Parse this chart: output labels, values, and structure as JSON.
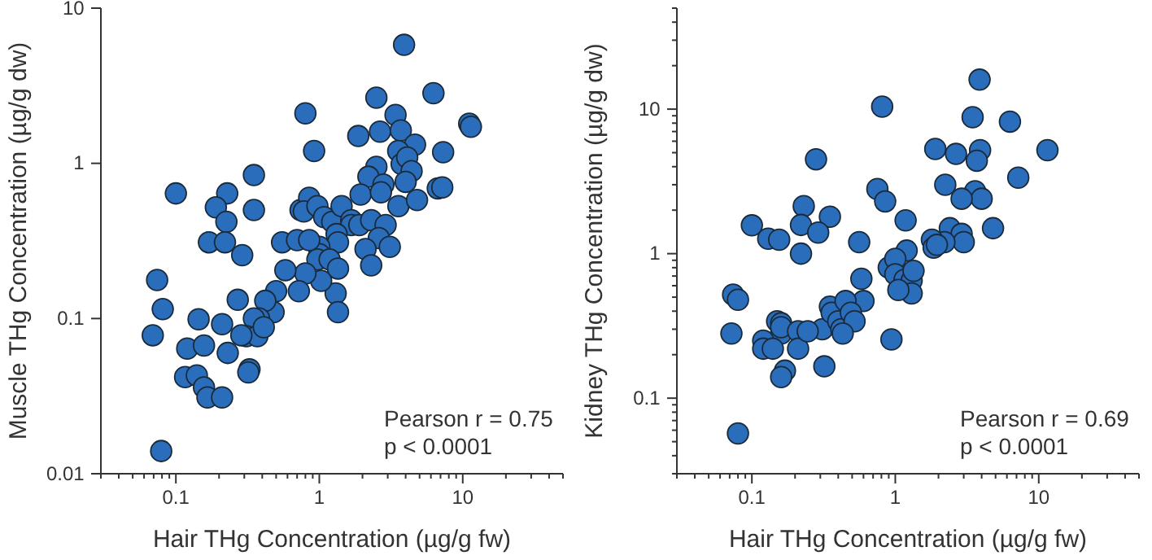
{
  "chart_data": [
    {
      "type": "scatter",
      "xlabel": "Hair THg Concentration (µg/g fw)",
      "ylabel": "Muscle THg Concentration (µg/g dw)",
      "log": "xy",
      "marker": "circle",
      "xlim": [
        0.03,
        50
      ],
      "ylim": [
        0.01,
        10
      ],
      "xticks": [
        {
          "value": 0.03,
          "label": null
        },
        {
          "value": 0.04,
          "label": null
        },
        {
          "value": 0.05,
          "label": null
        },
        {
          "value": 0.06,
          "label": null
        },
        {
          "value": 0.07,
          "label": null
        },
        {
          "value": 0.08,
          "label": null
        },
        {
          "value": 0.09,
          "label": null
        },
        0.1,
        {
          "value": 0.2,
          "label": null
        },
        {
          "value": 0.3,
          "label": null
        },
        {
          "value": 0.4,
          "label": null
        },
        {
          "value": 0.5,
          "label": null
        },
        {
          "value": 0.6,
          "label": null
        },
        {
          "value": 0.7,
          "label": null
        },
        {
          "value": 0.8,
          "label": null
        },
        {
          "value": 0.9,
          "label": null
        },
        1,
        {
          "value": 2,
          "label": null
        },
        {
          "value": 3,
          "label": null
        },
        {
          "value": 4,
          "label": null
        },
        {
          "value": 5,
          "label": null
        },
        {
          "value": 6,
          "label": null
        },
        {
          "value": 7,
          "label": null
        },
        {
          "value": 8,
          "label": null
        },
        {
          "value": 9,
          "label": null
        },
        10,
        {
          "value": 20,
          "label": null
        },
        {
          "value": 30,
          "label": null
        },
        {
          "value": 40,
          "label": null
        },
        {
          "value": 50,
          "label": null
        }
      ],
      "yticks": [
        0.01,
        0.1,
        1,
        10
      ],
      "annotations": [
        "Pearson r = 0.75",
        "p < 0.0001"
      ],
      "series": [
        {
          "color": "#2a6ebb",
          "x": [
            3.9,
            6.25,
            0.8,
            2.5,
            11.1,
            11.4,
            3.4,
            1.87,
            2.65,
            3.7,
            0.92,
            4.65,
            7.3,
            3.55,
            3.75,
            4.1,
            2.5,
            2.2,
            2.8,
            4.4,
            4.0,
            0.35,
            0.1,
            0.228,
            0.19,
            0.225,
            0.35,
            0.74,
            0.85,
            0.78,
            0.97,
            1.08,
            1.23,
            1.43,
            1.67,
            1.94,
            2.69,
            3.56,
            4.8,
            6.7,
            7.2,
            1.67,
            1.9,
            2.3,
            2.9,
            2.6,
            3.1,
            2.1,
            2.3,
            1.32,
            1.35,
            1.0,
            1.0,
            0.97,
            1.18,
            1.35,
            1.3,
            1.35,
            1.03,
            0.8,
            0.72,
            0.58,
            0.55,
            0.7,
            0.85,
            0.5,
            0.48,
            0.42,
            0.38,
            0.35,
            0.31,
            0.37,
            0.41,
            0.074,
            0.069,
            0.081,
            0.079,
            0.144,
            0.21,
            0.12,
            0.157,
            0.116,
            0.14,
            0.157,
            0.166,
            0.21,
            0.23,
            0.286,
            0.326,
            0.32,
            0.27,
            0.29,
            0.17,
            0.22
          ],
          "values": [
            5.8,
            2.83,
            2.1,
            2.65,
            1.8,
            1.72,
            2.05,
            1.5,
            1.6,
            1.63,
            1.2,
            1.32,
            1.18,
            1.2,
            0.99,
            1.09,
            0.95,
            0.82,
            0.73,
            0.89,
            0.76,
            0.84,
            0.64,
            0.64,
            0.52,
            0.42,
            0.5,
            0.5,
            0.6,
            0.49,
            0.53,
            0.45,
            0.42,
            0.53,
            0.43,
            0.63,
            0.65,
            0.53,
            0.58,
            0.69,
            0.7,
            0.4,
            0.4,
            0.43,
            0.4,
            0.33,
            0.29,
            0.28,
            0.22,
            0.35,
            0.31,
            0.29,
            0.26,
            0.24,
            0.24,
            0.21,
            0.145,
            0.11,
            0.175,
            0.195,
            0.15,
            0.205,
            0.31,
            0.32,
            0.32,
            0.15,
            0.11,
            0.13,
            0.1,
            0.1,
            0.077,
            0.077,
            0.088,
            0.177,
            0.078,
            0.115,
            0.014,
            0.099,
            0.092,
            0.064,
            0.067,
            0.042,
            0.043,
            0.036,
            0.031,
            0.031,
            0.06,
            0.078,
            0.047,
            0.045,
            0.132,
            0.256,
            0.31,
            0.31
          ]
        }
      ]
    },
    {
      "type": "scatter",
      "xlabel": "Hair THg Concentration (µg/g fw)",
      "ylabel": "Kidney THg Concentration (µg/g dw)",
      "log": "xy",
      "marker": "circle",
      "xlim": [
        0.03,
        50
      ],
      "ylim": [
        0.03,
        50
      ],
      "xticks": [
        {
          "value": 0.03,
          "label": null
        },
        {
          "value": 0.04,
          "label": null
        },
        {
          "value": 0.05,
          "label": null
        },
        {
          "value": 0.06,
          "label": null
        },
        {
          "value": 0.07,
          "label": null
        },
        {
          "value": 0.08,
          "label": null
        },
        {
          "value": 0.09,
          "label": null
        },
        0.1,
        {
          "value": 0.2,
          "label": null
        },
        {
          "value": 0.3,
          "label": null
        },
        {
          "value": 0.4,
          "label": null
        },
        {
          "value": 0.5,
          "label": null
        },
        {
          "value": 0.6,
          "label": null
        },
        {
          "value": 0.7,
          "label": null
        },
        {
          "value": 0.8,
          "label": null
        },
        {
          "value": 0.9,
          "label": null
        },
        1,
        {
          "value": 2,
          "label": null
        },
        {
          "value": 3,
          "label": null
        },
        {
          "value": 4,
          "label": null
        },
        {
          "value": 5,
          "label": null
        },
        {
          "value": 6,
          "label": null
        },
        {
          "value": 7,
          "label": null
        },
        {
          "value": 8,
          "label": null
        },
        {
          "value": 9,
          "label": null
        },
        10,
        {
          "value": 20,
          "label": null
        },
        {
          "value": 30,
          "label": null
        },
        {
          "value": 40,
          "label": null
        },
        {
          "value": 50,
          "label": null
        }
      ],
      "yticks": [
        {
          "value": 0.03,
          "label": null
        },
        {
          "value": 0.04,
          "label": null
        },
        {
          "value": 0.05,
          "label": null
        },
        {
          "value": 0.06,
          "label": null
        },
        {
          "value": 0.07,
          "label": null
        },
        {
          "value": 0.08,
          "label": null
        },
        {
          "value": 0.09,
          "label": null
        },
        0.1,
        {
          "value": 0.2,
          "label": null
        },
        {
          "value": 0.3,
          "label": null
        },
        {
          "value": 0.4,
          "label": null
        },
        {
          "value": 0.5,
          "label": null
        },
        {
          "value": 0.6,
          "label": null
        },
        {
          "value": 0.7,
          "label": null
        },
        {
          "value": 0.8,
          "label": null
        },
        {
          "value": 0.9,
          "label": null
        },
        1,
        {
          "value": 2,
          "label": null
        },
        {
          "value": 3,
          "label": null
        },
        {
          "value": 4,
          "label": null
        },
        {
          "value": 5,
          "label": null
        },
        {
          "value": 6,
          "label": null
        },
        {
          "value": 7,
          "label": null
        },
        {
          "value": 8,
          "label": null
        },
        {
          "value": 9,
          "label": null
        },
        10,
        {
          "value": 20,
          "label": null
        },
        {
          "value": 30,
          "label": null
        },
        {
          "value": 40,
          "label": null
        },
        {
          "value": 50,
          "label": null
        }
      ],
      "annotations": [
        "Pearson r = 0.69",
        "p < 0.0001"
      ],
      "series": [
        {
          "color": "#2a6ebb",
          "x": [
            3.87,
            0.81,
            3.46,
            6.3,
            0.28,
            1.9,
            2.65,
            3.9,
            3.7,
            11.5,
            7.2,
            2.23,
            3.6,
            4.0,
            2.9,
            0.75,
            0.85,
            0.23,
            0.22,
            0.35,
            0.1,
            0.13,
            0.155,
            0.29,
            0.56,
            1.18,
            2.4,
            2.9,
            4.8,
            3.0,
            2.2,
            1.8,
            1.85,
            1.95,
            0.22,
            1.2,
            0.9,
            1.0,
            1.0,
            1.16,
            1.3,
            1.34,
            1.3,
            1.05,
            0.58,
            0.6,
            0.074,
            0.08,
            0.072,
            0.94,
            0.31,
            0.35,
            0.36,
            0.4,
            0.42,
            0.45,
            0.49,
            0.52,
            0.43,
            0.32,
            0.15,
            0.16,
            0.16,
            0.16,
            0.12,
            0.12,
            0.14,
            0.21,
            0.21,
            0.245,
            0.17,
            0.16,
            0.08
          ],
          "values": [
            16,
            10.4,
            8.8,
            8.2,
            4.5,
            5.3,
            4.9,
            5.2,
            4.4,
            5.2,
            3.36,
            3.0,
            2.7,
            2.4,
            2.4,
            2.8,
            2.3,
            2.13,
            1.58,
            1.8,
            1.57,
            1.27,
            1.25,
            1.4,
            1.2,
            1.7,
            1.5,
            1.37,
            1.5,
            1.2,
            1.2,
            1.25,
            1.1,
            1.15,
            1.0,
            1.05,
            0.8,
            0.92,
            0.72,
            0.66,
            0.65,
            0.76,
            0.53,
            0.56,
            0.67,
            0.47,
            0.52,
            0.48,
            0.28,
            0.255,
            0.3,
            0.43,
            0.39,
            0.34,
            0.3,
            0.47,
            0.39,
            0.34,
            0.28,
            0.166,
            0.34,
            0.33,
            0.28,
            0.31,
            0.25,
            0.22,
            0.22,
            0.29,
            0.22,
            0.29,
            0.155,
            0.14,
            0.057
          ]
        }
      ]
    }
  ]
}
